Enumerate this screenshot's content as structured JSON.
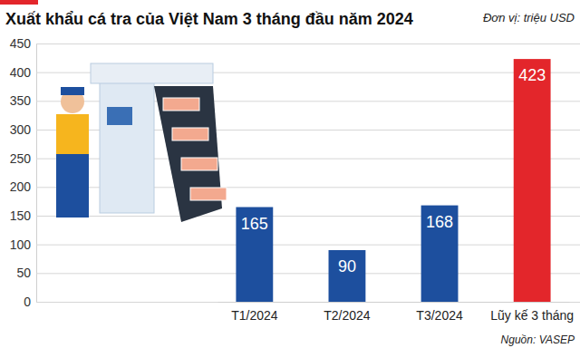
{
  "chart_data": {
    "type": "bar",
    "title": "Xuất khẩu cá tra của Việt Nam 3 tháng đầu năm 2024",
    "subtitle": "Đơn vị: triệu USD",
    "source": "Nguồn: VASEP",
    "categories": [
      "T1/2024",
      "T2/2024",
      "T3/2024",
      "Lũy kế 3 tháng"
    ],
    "values": [
      165,
      90,
      168,
      423
    ],
    "colors": [
      "#1d4f9e",
      "#1d4f9e",
      "#1d4f9e",
      "#e3262b"
    ],
    "ylim": [
      0,
      450
    ],
    "yticks": [
      0,
      50,
      100,
      150,
      200,
      250,
      300,
      350,
      400,
      450
    ],
    "grid": true,
    "data_labels": true
  }
}
